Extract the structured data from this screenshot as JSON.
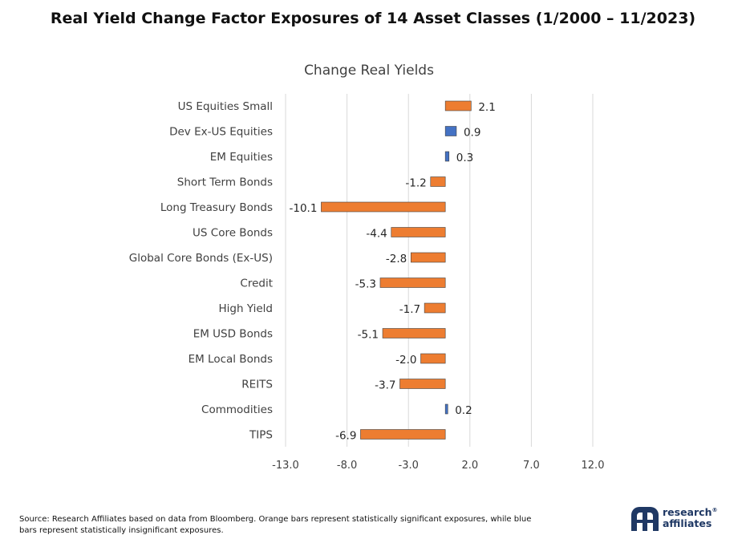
{
  "title": "Real Yield Change Factor Exposures of 14 Asset Classes (1/2000 – 11/2023)",
  "colors": {
    "significant": "#ED7D31",
    "insignificant": "#4472C4",
    "gridline": "#d9d9d9",
    "text": "#404040",
    "brand": "#1f3864"
  },
  "chart_data": {
    "type": "bar",
    "orientation": "horizontal",
    "title": "Change Real Yields",
    "categories": [
      "US Equities Small",
      "Dev Ex-US Equities",
      "EM Equities",
      "Short Term Bonds",
      "Long Treasury Bonds",
      "US Core Bonds",
      "Global Core Bonds (Ex-US)",
      "Credit",
      "High Yield",
      "EM USD Bonds",
      "EM Local Bonds",
      "REITS",
      "Commodities",
      "TIPS"
    ],
    "values": [
      2.1,
      0.9,
      0.3,
      -1.2,
      -10.1,
      -4.4,
      -2.8,
      -5.3,
      -1.7,
      -5.1,
      -2.0,
      -3.7,
      0.2,
      -6.9
    ],
    "labels": [
      "2.1",
      "0.9",
      "0.3",
      "-1.2",
      "-10.1",
      "-4.4",
      "-2.8",
      "-5.3",
      "-1.7",
      "-5.1",
      "-2.0",
      "-3.7",
      "0.2",
      "-6.9"
    ],
    "significant": [
      true,
      false,
      false,
      true,
      true,
      true,
      true,
      true,
      true,
      true,
      true,
      true,
      false,
      true
    ],
    "xlim": [
      -13,
      12
    ],
    "xticks": [
      -13,
      -8,
      -3,
      2,
      7,
      12
    ],
    "xtick_labels": [
      "-13.0",
      "-8.0",
      "-3.0",
      "2.0",
      "7.0",
      "12.0"
    ],
    "grid": true,
    "legend": "none"
  },
  "footnote": "Source: Research Affiliates based on data from Bloomberg. Orange bars represent statistically significant exposures, while blue bars represent statistically insignificant exposures.",
  "logo": {
    "line1": "research",
    "line2": "affiliates",
    "mark": "®"
  }
}
